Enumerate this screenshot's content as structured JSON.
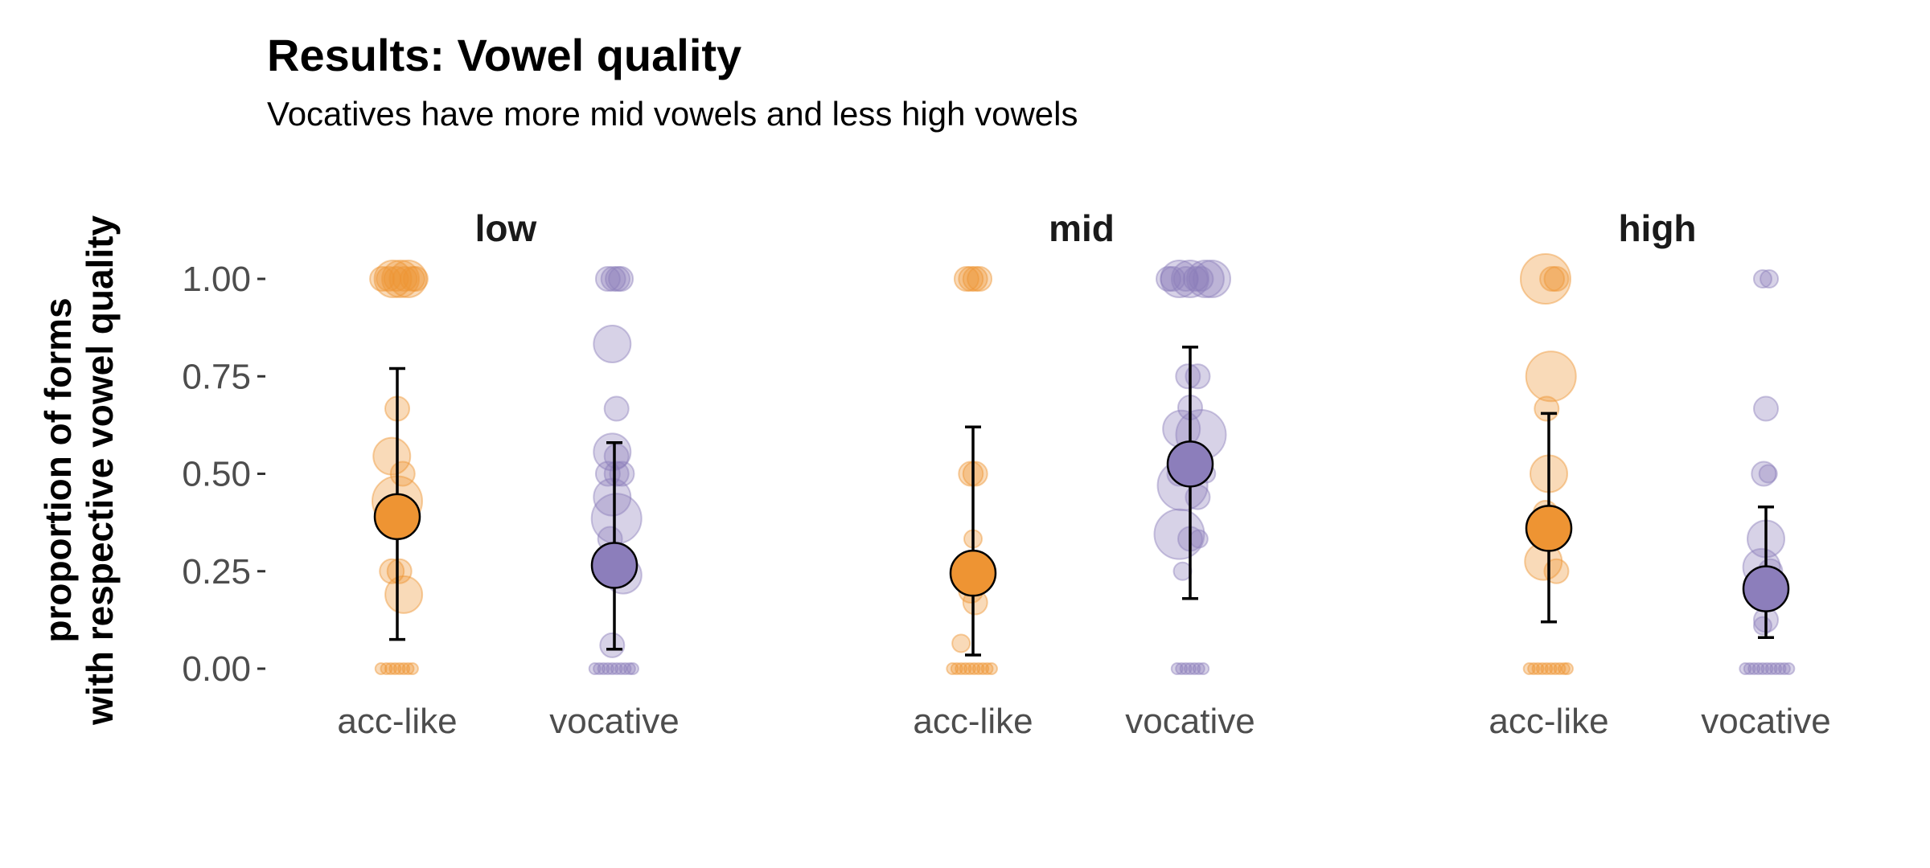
{
  "chart_data": {
    "type": "scatter",
    "title": "Results: Vowel quality",
    "subtitle": "Vocatives have more mid vowels and less high vowels",
    "ylabel_lines": [
      "proportion of forms",
      "with respective vowel quality"
    ],
    "xlabel": "",
    "ylim": [
      0,
      1
    ],
    "yticks": [
      "0.00",
      "0.25",
      "0.50",
      "0.75",
      "1.00"
    ],
    "ytick_values": [
      0,
      0.25,
      0.5,
      0.75,
      1
    ],
    "categories": [
      "acc-like",
      "vocative"
    ],
    "grid": false,
    "colors": {
      "acc-like": "#ee9433",
      "vocative": "#8c7ebb"
    },
    "facets": [
      {
        "name": "low",
        "groups": [
          {
            "category": "acc-like",
            "mean": 0.39,
            "ci": [
              0.075,
              0.77
            ],
            "points": [
              {
                "x": -0.14,
                "y": 1.0,
                "s": 1
              },
              {
                "x": -0.08,
                "y": 1.0,
                "s": 1
              },
              {
                "x": -0.04,
                "y": 1.0,
                "s": 2
              },
              {
                "x": -0.01,
                "y": 1.0,
                "s": 1
              },
              {
                "x": 0.03,
                "y": 1.0,
                "s": 2
              },
              {
                "x": 0.07,
                "y": 1.0,
                "s": 1
              },
              {
                "x": 0.1,
                "y": 1.0,
                "s": 2
              },
              {
                "x": 0.14,
                "y": 1.0,
                "s": 1
              },
              {
                "x": 0.17,
                "y": 1.0,
                "s": 1
              },
              {
                "x": 0.0,
                "y": 0.667,
                "s": 1
              },
              {
                "x": -0.05,
                "y": 0.545,
                "s": 2
              },
              {
                "x": 0.05,
                "y": 0.5,
                "s": 1
              },
              {
                "x": 0.0,
                "y": 0.43,
                "s": 3
              },
              {
                "x": -0.05,
                "y": 0.25,
                "s": 1
              },
              {
                "x": 0.02,
                "y": 0.25,
                "s": 1
              },
              {
                "x": 0.06,
                "y": 0.19,
                "s": 2
              },
              {
                "x": -0.15,
                "y": 0.0,
                "s": 0
              },
              {
                "x": -0.1,
                "y": 0.0,
                "s": 0
              },
              {
                "x": -0.06,
                "y": 0.0,
                "s": 0
              },
              {
                "x": -0.02,
                "y": 0.0,
                "s": 0
              },
              {
                "x": 0.02,
                "y": 0.0,
                "s": 0
              },
              {
                "x": 0.06,
                "y": 0.0,
                "s": 0
              },
              {
                "x": 0.1,
                "y": 0.0,
                "s": 0
              },
              {
                "x": 0.14,
                "y": 0.0,
                "s": 0
              }
            ]
          },
          {
            "category": "vocative",
            "mean": 0.265,
            "ci": [
              0.05,
              0.58
            ],
            "points": [
              {
                "x": -0.06,
                "y": 1.0,
                "s": 1
              },
              {
                "x": -0.01,
                "y": 1.0,
                "s": 1
              },
              {
                "x": 0.03,
                "y": 1.0,
                "s": 1
              },
              {
                "x": 0.06,
                "y": 1.0,
                "s": 1
              },
              {
                "x": -0.02,
                "y": 0.833,
                "s": 2
              },
              {
                "x": 0.02,
                "y": 0.667,
                "s": 1
              },
              {
                "x": -0.02,
                "y": 0.556,
                "s": 2
              },
              {
                "x": 0.02,
                "y": 0.545,
                "s": 1
              },
              {
                "x": -0.06,
                "y": 0.5,
                "s": 1
              },
              {
                "x": 0.02,
                "y": 0.5,
                "s": 1
              },
              {
                "x": 0.07,
                "y": 0.5,
                "s": 1
              },
              {
                "x": -0.02,
                "y": 0.44,
                "s": 2
              },
              {
                "x": 0.02,
                "y": 0.385,
                "s": 3
              },
              {
                "x": -0.04,
                "y": 0.333,
                "s": 1
              },
              {
                "x": 0.08,
                "y": 0.24,
                "s": 2
              },
              {
                "x": -0.02,
                "y": 0.06,
                "s": 1
              },
              {
                "x": -0.18,
                "y": 0.0,
                "s": 0
              },
              {
                "x": -0.14,
                "y": 0.0,
                "s": 0
              },
              {
                "x": -0.1,
                "y": 0.0,
                "s": 0
              },
              {
                "x": -0.06,
                "y": 0.0,
                "s": 0
              },
              {
                "x": -0.02,
                "y": 0.0,
                "s": 0
              },
              {
                "x": 0.02,
                "y": 0.0,
                "s": 0
              },
              {
                "x": 0.06,
                "y": 0.0,
                "s": 0
              },
              {
                "x": 0.1,
                "y": 0.0,
                "s": 0
              },
              {
                "x": 0.14,
                "y": 0.0,
                "s": 0
              },
              {
                "x": 0.17,
                "y": 0.0,
                "s": 0
              }
            ]
          }
        ]
      },
      {
        "name": "mid",
        "groups": [
          {
            "category": "acc-like",
            "mean": 0.245,
            "ci": [
              0.035,
              0.62
            ],
            "points": [
              {
                "x": -0.06,
                "y": 1.0,
                "s": 1
              },
              {
                "x": -0.02,
                "y": 1.0,
                "s": 1
              },
              {
                "x": 0.02,
                "y": 1.0,
                "s": 1
              },
              {
                "x": 0.06,
                "y": 1.0,
                "s": 1
              },
              {
                "x": -0.02,
                "y": 0.5,
                "s": 1
              },
              {
                "x": 0.02,
                "y": 0.5,
                "s": 1
              },
              {
                "x": 0.0,
                "y": 0.333,
                "s": 0.5
              },
              {
                "x": -0.02,
                "y": 0.2,
                "s": 1
              },
              {
                "x": 0.02,
                "y": 0.17,
                "s": 1
              },
              {
                "x": -0.11,
                "y": 0.065,
                "s": 0.5
              },
              {
                "x": -0.19,
                "y": 0.0,
                "s": 0
              },
              {
                "x": -0.15,
                "y": 0.0,
                "s": 0
              },
              {
                "x": -0.11,
                "y": 0.0,
                "s": 0
              },
              {
                "x": -0.07,
                "y": 0.0,
                "s": 0
              },
              {
                "x": -0.03,
                "y": 0.0,
                "s": 0
              },
              {
                "x": 0.01,
                "y": 0.0,
                "s": 0
              },
              {
                "x": 0.05,
                "y": 0.0,
                "s": 0
              },
              {
                "x": 0.09,
                "y": 0.0,
                "s": 0
              },
              {
                "x": 0.13,
                "y": 0.0,
                "s": 0
              },
              {
                "x": 0.17,
                "y": 0.0,
                "s": 0
              }
            ]
          },
          {
            "category": "vocative",
            "mean": 0.525,
            "ci": [
              0.18,
              0.825
            ],
            "points": [
              {
                "x": -0.2,
                "y": 1.0,
                "s": 1
              },
              {
                "x": -0.16,
                "y": 1.0,
                "s": 1
              },
              {
                "x": -0.1,
                "y": 1.0,
                "s": 2
              },
              {
                "x": -0.04,
                "y": 1.0,
                "s": 1
              },
              {
                "x": 0.0,
                "y": 1.0,
                "s": 2
              },
              {
                "x": 0.05,
                "y": 1.0,
                "s": 1
              },
              {
                "x": 0.1,
                "y": 1.0,
                "s": 1
              },
              {
                "x": 0.14,
                "y": 1.0,
                "s": 2
              },
              {
                "x": 0.2,
                "y": 1.0,
                "s": 2
              },
              {
                "x": -0.02,
                "y": 0.75,
                "s": 1
              },
              {
                "x": 0.07,
                "y": 0.75,
                "s": 1
              },
              {
                "x": 0.0,
                "y": 0.67,
                "s": 1
              },
              {
                "x": -0.08,
                "y": 0.615,
                "s": 2
              },
              {
                "x": 0.1,
                "y": 0.6,
                "s": 3
              },
              {
                "x": 0.0,
                "y": 0.55,
                "s": 1
              },
              {
                "x": -0.1,
                "y": 0.5,
                "s": 1
              },
              {
                "x": 0.15,
                "y": 0.5,
                "s": 0.5
              },
              {
                "x": -0.07,
                "y": 0.47,
                "s": 3
              },
              {
                "x": 0.07,
                "y": 0.44,
                "s": 1
              },
              {
                "x": -0.1,
                "y": 0.345,
                "s": 3
              },
              {
                "x": 0.0,
                "y": 0.333,
                "s": 1
              },
              {
                "x": 0.08,
                "y": 0.333,
                "s": 0.5
              },
              {
                "x": -0.07,
                "y": 0.25,
                "s": 0.5
              },
              {
                "x": -0.12,
                "y": 0.0,
                "s": 0
              },
              {
                "x": -0.08,
                "y": 0.0,
                "s": 0
              },
              {
                "x": -0.04,
                "y": 0.0,
                "s": 0
              },
              {
                "x": 0.0,
                "y": 0.0,
                "s": 0
              },
              {
                "x": 0.04,
                "y": 0.0,
                "s": 0
              },
              {
                "x": 0.08,
                "y": 0.0,
                "s": 0
              },
              {
                "x": 0.12,
                "y": 0.0,
                "s": 0
              }
            ]
          }
        ]
      },
      {
        "name": "high",
        "groups": [
          {
            "category": "acc-like",
            "mean": 0.36,
            "ci": [
              0.12,
              0.655
            ],
            "points": [
              {
                "x": -0.03,
                "y": 1.0,
                "s": 3
              },
              {
                "x": 0.03,
                "y": 1.0,
                "s": 1
              },
              {
                "x": 0.07,
                "y": 1.0,
                "s": 1
              },
              {
                "x": 0.02,
                "y": 0.75,
                "s": 3
              },
              {
                "x": -0.02,
                "y": 0.667,
                "s": 1
              },
              {
                "x": 0.0,
                "y": 0.5,
                "s": 2
              },
              {
                "x": -0.03,
                "y": 0.4,
                "s": 1
              },
              {
                "x": -0.05,
                "y": 0.275,
                "s": 2
              },
              {
                "x": 0.07,
                "y": 0.25,
                "s": 1
              },
              {
                "x": -0.18,
                "y": 0.0,
                "s": 0
              },
              {
                "x": -0.14,
                "y": 0.0,
                "s": 0
              },
              {
                "x": -0.1,
                "y": 0.0,
                "s": 0
              },
              {
                "x": -0.06,
                "y": 0.0,
                "s": 0
              },
              {
                "x": -0.02,
                "y": 0.0,
                "s": 0
              },
              {
                "x": 0.02,
                "y": 0.0,
                "s": 0
              },
              {
                "x": 0.06,
                "y": 0.0,
                "s": 0
              },
              {
                "x": 0.1,
                "y": 0.0,
                "s": 0
              },
              {
                "x": 0.14,
                "y": 0.0,
                "s": 0
              },
              {
                "x": 0.17,
                "y": 0.0,
                "s": 0
              }
            ]
          },
          {
            "category": "vocative",
            "mean": 0.205,
            "ci": [
              0.08,
              0.415
            ],
            "points": [
              {
                "x": -0.03,
                "y": 1.0,
                "s": 0.5
              },
              {
                "x": 0.03,
                "y": 1.0,
                "s": 0.5
              },
              {
                "x": 0.0,
                "y": 0.667,
                "s": 1
              },
              {
                "x": -0.02,
                "y": 0.5,
                "s": 1
              },
              {
                "x": 0.02,
                "y": 0.5,
                "s": 0.5
              },
              {
                "x": 0.0,
                "y": 0.333,
                "s": 2
              },
              {
                "x": -0.04,
                "y": 0.26,
                "s": 2
              },
              {
                "x": 0.04,
                "y": 0.25,
                "s": 1
              },
              {
                "x": -0.02,
                "y": 0.2,
                "s": 1
              },
              {
                "x": 0.02,
                "y": 0.2,
                "s": 1
              },
              {
                "x": 0.0,
                "y": 0.125,
                "s": 1
              },
              {
                "x": -0.03,
                "y": 0.11,
                "s": 0.5
              },
              {
                "x": -0.19,
                "y": 0.0,
                "s": 0
              },
              {
                "x": -0.15,
                "y": 0.0,
                "s": 0
              },
              {
                "x": -0.11,
                "y": 0.0,
                "s": 0
              },
              {
                "x": -0.07,
                "y": 0.0,
                "s": 0
              },
              {
                "x": -0.03,
                "y": 0.0,
                "s": 0
              },
              {
                "x": 0.01,
                "y": 0.0,
                "s": 0
              },
              {
                "x": 0.05,
                "y": 0.0,
                "s": 0
              },
              {
                "x": 0.09,
                "y": 0.0,
                "s": 0
              },
              {
                "x": 0.13,
                "y": 0.0,
                "s": 0
              },
              {
                "x": 0.17,
                "y": 0.0,
                "s": 0
              },
              {
                "x": 0.21,
                "y": 0.0,
                "s": 0
              }
            ]
          }
        ]
      }
    ]
  }
}
